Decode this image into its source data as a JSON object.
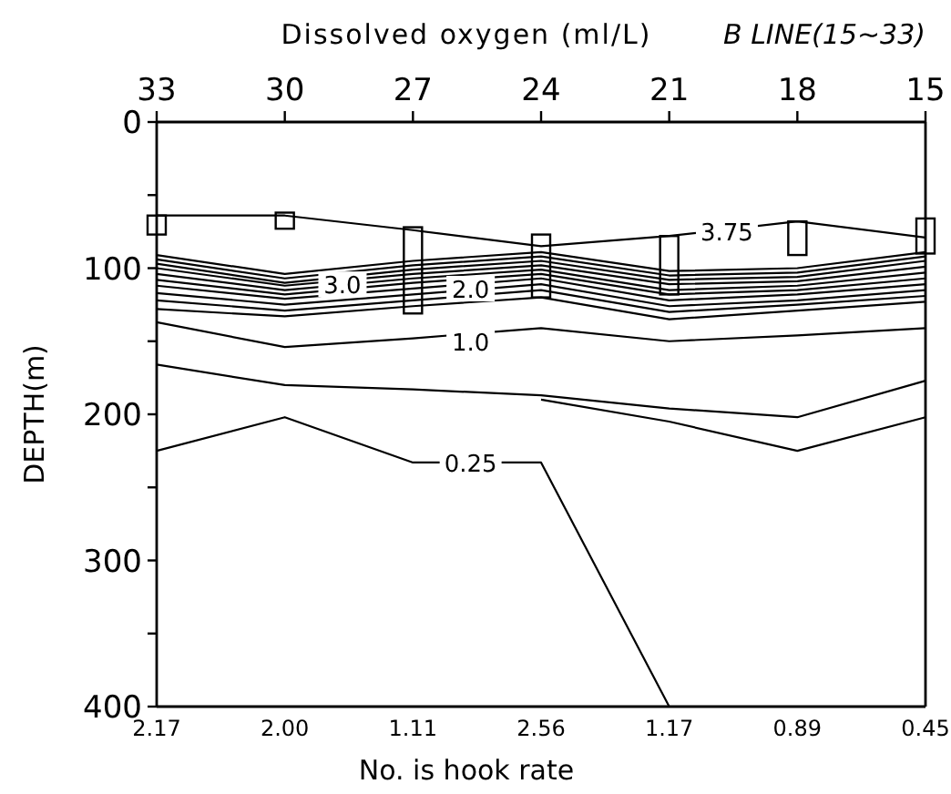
{
  "chart_data": {
    "type": "line",
    "title": "Dissolved oxygen (ml/L)",
    "subtitle": "B LINE(15~33)",
    "xlabel": "No. is hook rate",
    "ylabel": "DEPTH(m)",
    "categories": [
      "2.17",
      "2.00",
      "1.11",
      "2.56",
      "1.17",
      "0.89",
      "0.45"
    ],
    "x2lim": [
      33,
      15
    ],
    "x2ticks": [
      33,
      30,
      27,
      24,
      21,
      18,
      15
    ],
    "ylim": [
      400,
      0
    ],
    "yticks": [
      0,
      {
        "value": 50,
        "label": null
      },
      100,
      {
        "value": 150,
        "label": null
      },
      200,
      {
        "value": 250,
        "label": null
      },
      300,
      {
        "value": 350,
        "label": null
      },
      400
    ],
    "grid": false,
    "series": [
      {
        "type": "bar",
        "color": "#000000",
        "base": [
          64,
          62,
          72,
          77,
          78,
          68,
          66
        ],
        "values": [
          13,
          11,
          59,
          43,
          40,
          23,
          24
        ]
      },
      {
        "color": "#000000",
        "values": [
          64,
          64,
          74,
          85,
          78,
          68,
          79
        ]
      },
      {
        "color": "#000000",
        "values": [
          91,
          104,
          95,
          89,
          102,
          100,
          89
        ]
      },
      {
        "color": "#000000",
        "values": [
          94,
          107,
          98,
          92,
          105,
          103,
          92
        ]
      },
      {
        "color": "#000000",
        "values": [
          97,
          110,
          101,
          95,
          108,
          106,
          95
        ]
      },
      {
        "color": "#000000",
        "values": [
          100,
          112,
          104,
          98,
          111,
          109,
          99
        ]
      },
      {
        "color": "#000000",
        "values": [
          104,
          115,
          107,
          101,
          115,
          112,
          103
        ]
      },
      {
        "color": "#000000",
        "values": [
          108,
          118,
          110,
          104,
          118,
          115,
          107
        ]
      },
      {
        "color": "#000000",
        "values": [
          112,
          121,
          114,
          107,
          122,
          118,
          111
        ]
      },
      {
        "color": "#000000",
        "values": [
          117,
          125,
          118,
          111,
          126,
          122,
          115
        ]
      },
      {
        "color": "#000000",
        "values": [
          122,
          129,
          122,
          115,
          130,
          125,
          119
        ]
      },
      {
        "color": "#000000",
        "values": [
          128,
          133,
          126,
          120,
          135,
          129,
          123
        ]
      },
      {
        "color": "#000000",
        "values": [
          137,
          154,
          148,
          141,
          150,
          146,
          141
        ]
      },
      {
        "color": "#000000",
        "values": [
          166,
          180,
          183,
          187,
          196,
          202,
          177
        ]
      },
      {
        "color": "#000000",
        "values": [
          225,
          202,
          233,
          233,
          400,
          null,
          null
        ]
      },
      {
        "color": "#000000",
        "values": [
          null,
          null,
          null,
          190,
          205,
          225,
          202
        ]
      }
    ],
    "annotations": [
      {
        "text": "3.75",
        "x": "1.17",
        "y": 75
      },
      {
        "text": "3.0",
        "x": "2.00",
        "y": 111
      },
      {
        "text": "2.0",
        "x": "1.11",
        "y": 114
      },
      {
        "text": "1.0",
        "x": "1.11",
        "y": 150
      },
      {
        "text": "0.25",
        "x": "1.11",
        "y": 233
      }
    ]
  }
}
